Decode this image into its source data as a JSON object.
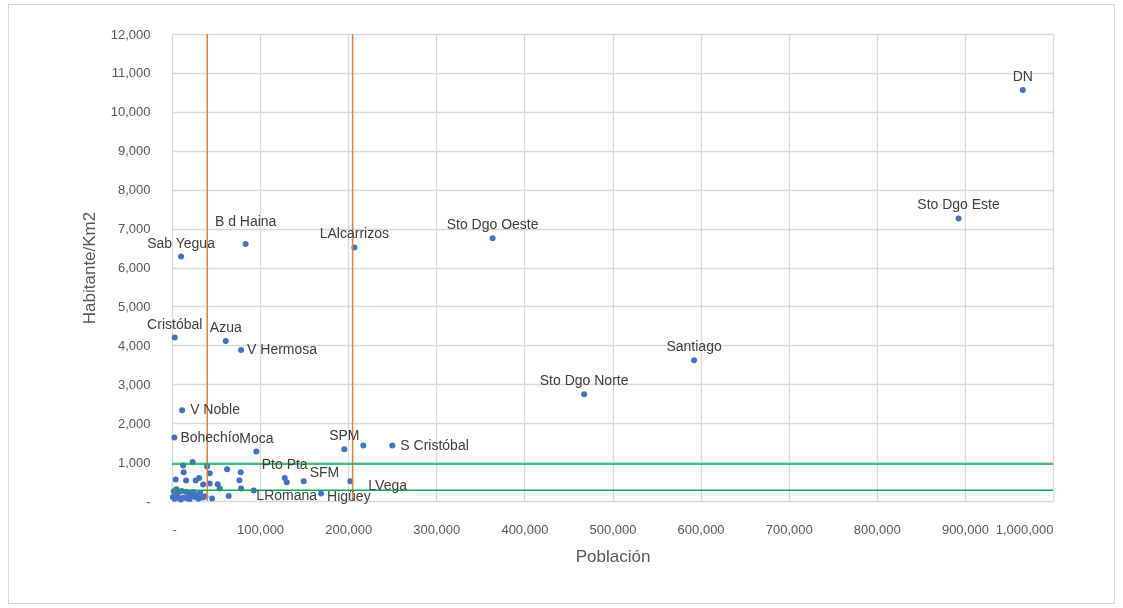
{
  "chart_data": {
    "type": "scatter",
    "xlabel": "Población",
    "ylabel": "Habitante/Km2",
    "x": [
      965700,
      892800,
      363900,
      592600,
      467800,
      207000,
      83600,
      10300,
      3100,
      61000,
      78400,
      11500,
      2700,
      95800,
      195600,
      217200,
      250100,
      127900,
      130200,
      149500,
      169200,
      202400,
      23500,
      12600,
      39800,
      13300,
      42800,
      62500,
      78000,
      4200,
      16000,
      26900,
      30800,
      35300,
      42800,
      51900,
      76500,
      78400,
      54100,
      92700,
      64300,
      45500,
      1000,
      2000,
      3000,
      4000,
      5000,
      7000,
      8000,
      10000,
      11000,
      13000,
      16000,
      17000,
      19000,
      20000,
      22000,
      24000,
      26000,
      28000,
      30000,
      32000,
      35000,
      38000
    ],
    "values": [
      10563,
      7260,
      6751,
      3615,
      2743,
      6514,
      6607,
      6283,
      4200,
      4113,
      3882,
      2332,
      1630,
      1270,
      1329,
      1424,
      1424,
      591,
      481,
      506,
      190,
      506,
      1000,
      910,
      884,
      738,
      712,
      815,
      738,
      550,
      524,
      524,
      591,
      422,
      447,
      429,
      532,
      319,
      319,
      267,
      129,
      62,
      100,
      250,
      60,
      180,
      300,
      220,
      80,
      40,
      260,
      90,
      240,
      70,
      190,
      50,
      130,
      230,
      100,
      170,
      60,
      210,
      90,
      120
    ],
    "color": "#4472c4",
    "marker": "circle",
    "xlim": [
      0,
      1000000
    ],
    "ylim": [
      0,
      12000
    ],
    "xticks": [
      {
        "value": 0,
        "label": "-"
      },
      {
        "value": 100000,
        "label": "100,000"
      },
      {
        "value": 200000,
        "label": "200,000"
      },
      {
        "value": 300000,
        "label": "300,000"
      },
      {
        "value": 400000,
        "label": "400,000"
      },
      {
        "value": 500000,
        "label": "500,000"
      },
      {
        "value": 600000,
        "label": "600,000"
      },
      {
        "value": 700000,
        "label": "700,000"
      },
      {
        "value": 800000,
        "label": "800,000"
      },
      {
        "value": 900000,
        "label": "900,000"
      },
      {
        "value": 1000000,
        "label": "1,000,000"
      }
    ],
    "yticks": [
      {
        "value": 0,
        "label": "-"
      },
      {
        "value": 1000,
        "label": "1,000"
      },
      {
        "value": 2000,
        "label": "2,000"
      },
      {
        "value": 3000,
        "label": "3,000"
      },
      {
        "value": 4000,
        "label": "4,000"
      },
      {
        "value": 5000,
        "label": "5,000"
      },
      {
        "value": 6000,
        "label": "6,000"
      },
      {
        "value": 7000,
        "label": "7,000"
      },
      {
        "value": 8000,
        "label": "8,000"
      },
      {
        "value": 9000,
        "label": "9,000"
      },
      {
        "value": 10000,
        "label": "10,000"
      },
      {
        "value": 11000,
        "label": "11,000"
      },
      {
        "value": 12000,
        "label": "12,000"
      }
    ],
    "grid": true,
    "ref_lines": [
      {
        "axis": "x",
        "value": 40000,
        "color": "#ed7d31"
      },
      {
        "axis": "x",
        "value": 205000,
        "color": "#ed7d31"
      },
      {
        "axis": "y",
        "value": 950,
        "color": "#00b050"
      },
      {
        "axis": "y",
        "value": 275,
        "color": "#00b050"
      }
    ],
    "annotations": [
      {
        "text": "DN",
        "x": 965700,
        "y": 10563
      },
      {
        "text": "Sto Dgo Este",
        "x": 892800,
        "y": 7260
      },
      {
        "text": "Sto Dgo Oeste",
        "x": 363900,
        "y": 6751
      },
      {
        "text": "Santiago",
        "x": 592600,
        "y": 3615
      },
      {
        "text": "Sto Dgo Norte",
        "x": 467800,
        "y": 2743
      },
      {
        "text": "LAlcarrizos",
        "x": 207000,
        "y": 6514
      },
      {
        "text": "B d Haina",
        "x": 83600,
        "y": 6607
      },
      {
        "text": "Sab Yegua",
        "x": 10300,
        "y": 6283
      },
      {
        "text": "Cristóbal",
        "x": 3100,
        "y": 4200
      },
      {
        "text": "Azua",
        "x": 61000,
        "y": 4113
      },
      {
        "text": "V Hermosa",
        "x": 78400,
        "y": 3882
      },
      {
        "text": "V Noble",
        "x": 11500,
        "y": 2332
      },
      {
        "text": "Bohechío",
        "x": 2700,
        "y": 1630
      },
      {
        "text": "Moca",
        "x": 95800,
        "y": 1270
      },
      {
        "text": "SPM",
        "x": 195600,
        "y": 1329
      },
      {
        "text": "S Cristóbal",
        "x": 250100,
        "y": 1424
      },
      {
        "text": "Pto Pta",
        "x": 127900,
        "y": 591
      },
      {
        "text": "SFM",
        "x": 149500,
        "y": 506
      },
      {
        "text": "LRomana",
        "x": 130200,
        "y": 481
      },
      {
        "text": "Higüey",
        "x": 169200,
        "y": 190
      },
      {
        "text": "LVega",
        "x": 202400,
        "y": 506
      }
    ]
  }
}
